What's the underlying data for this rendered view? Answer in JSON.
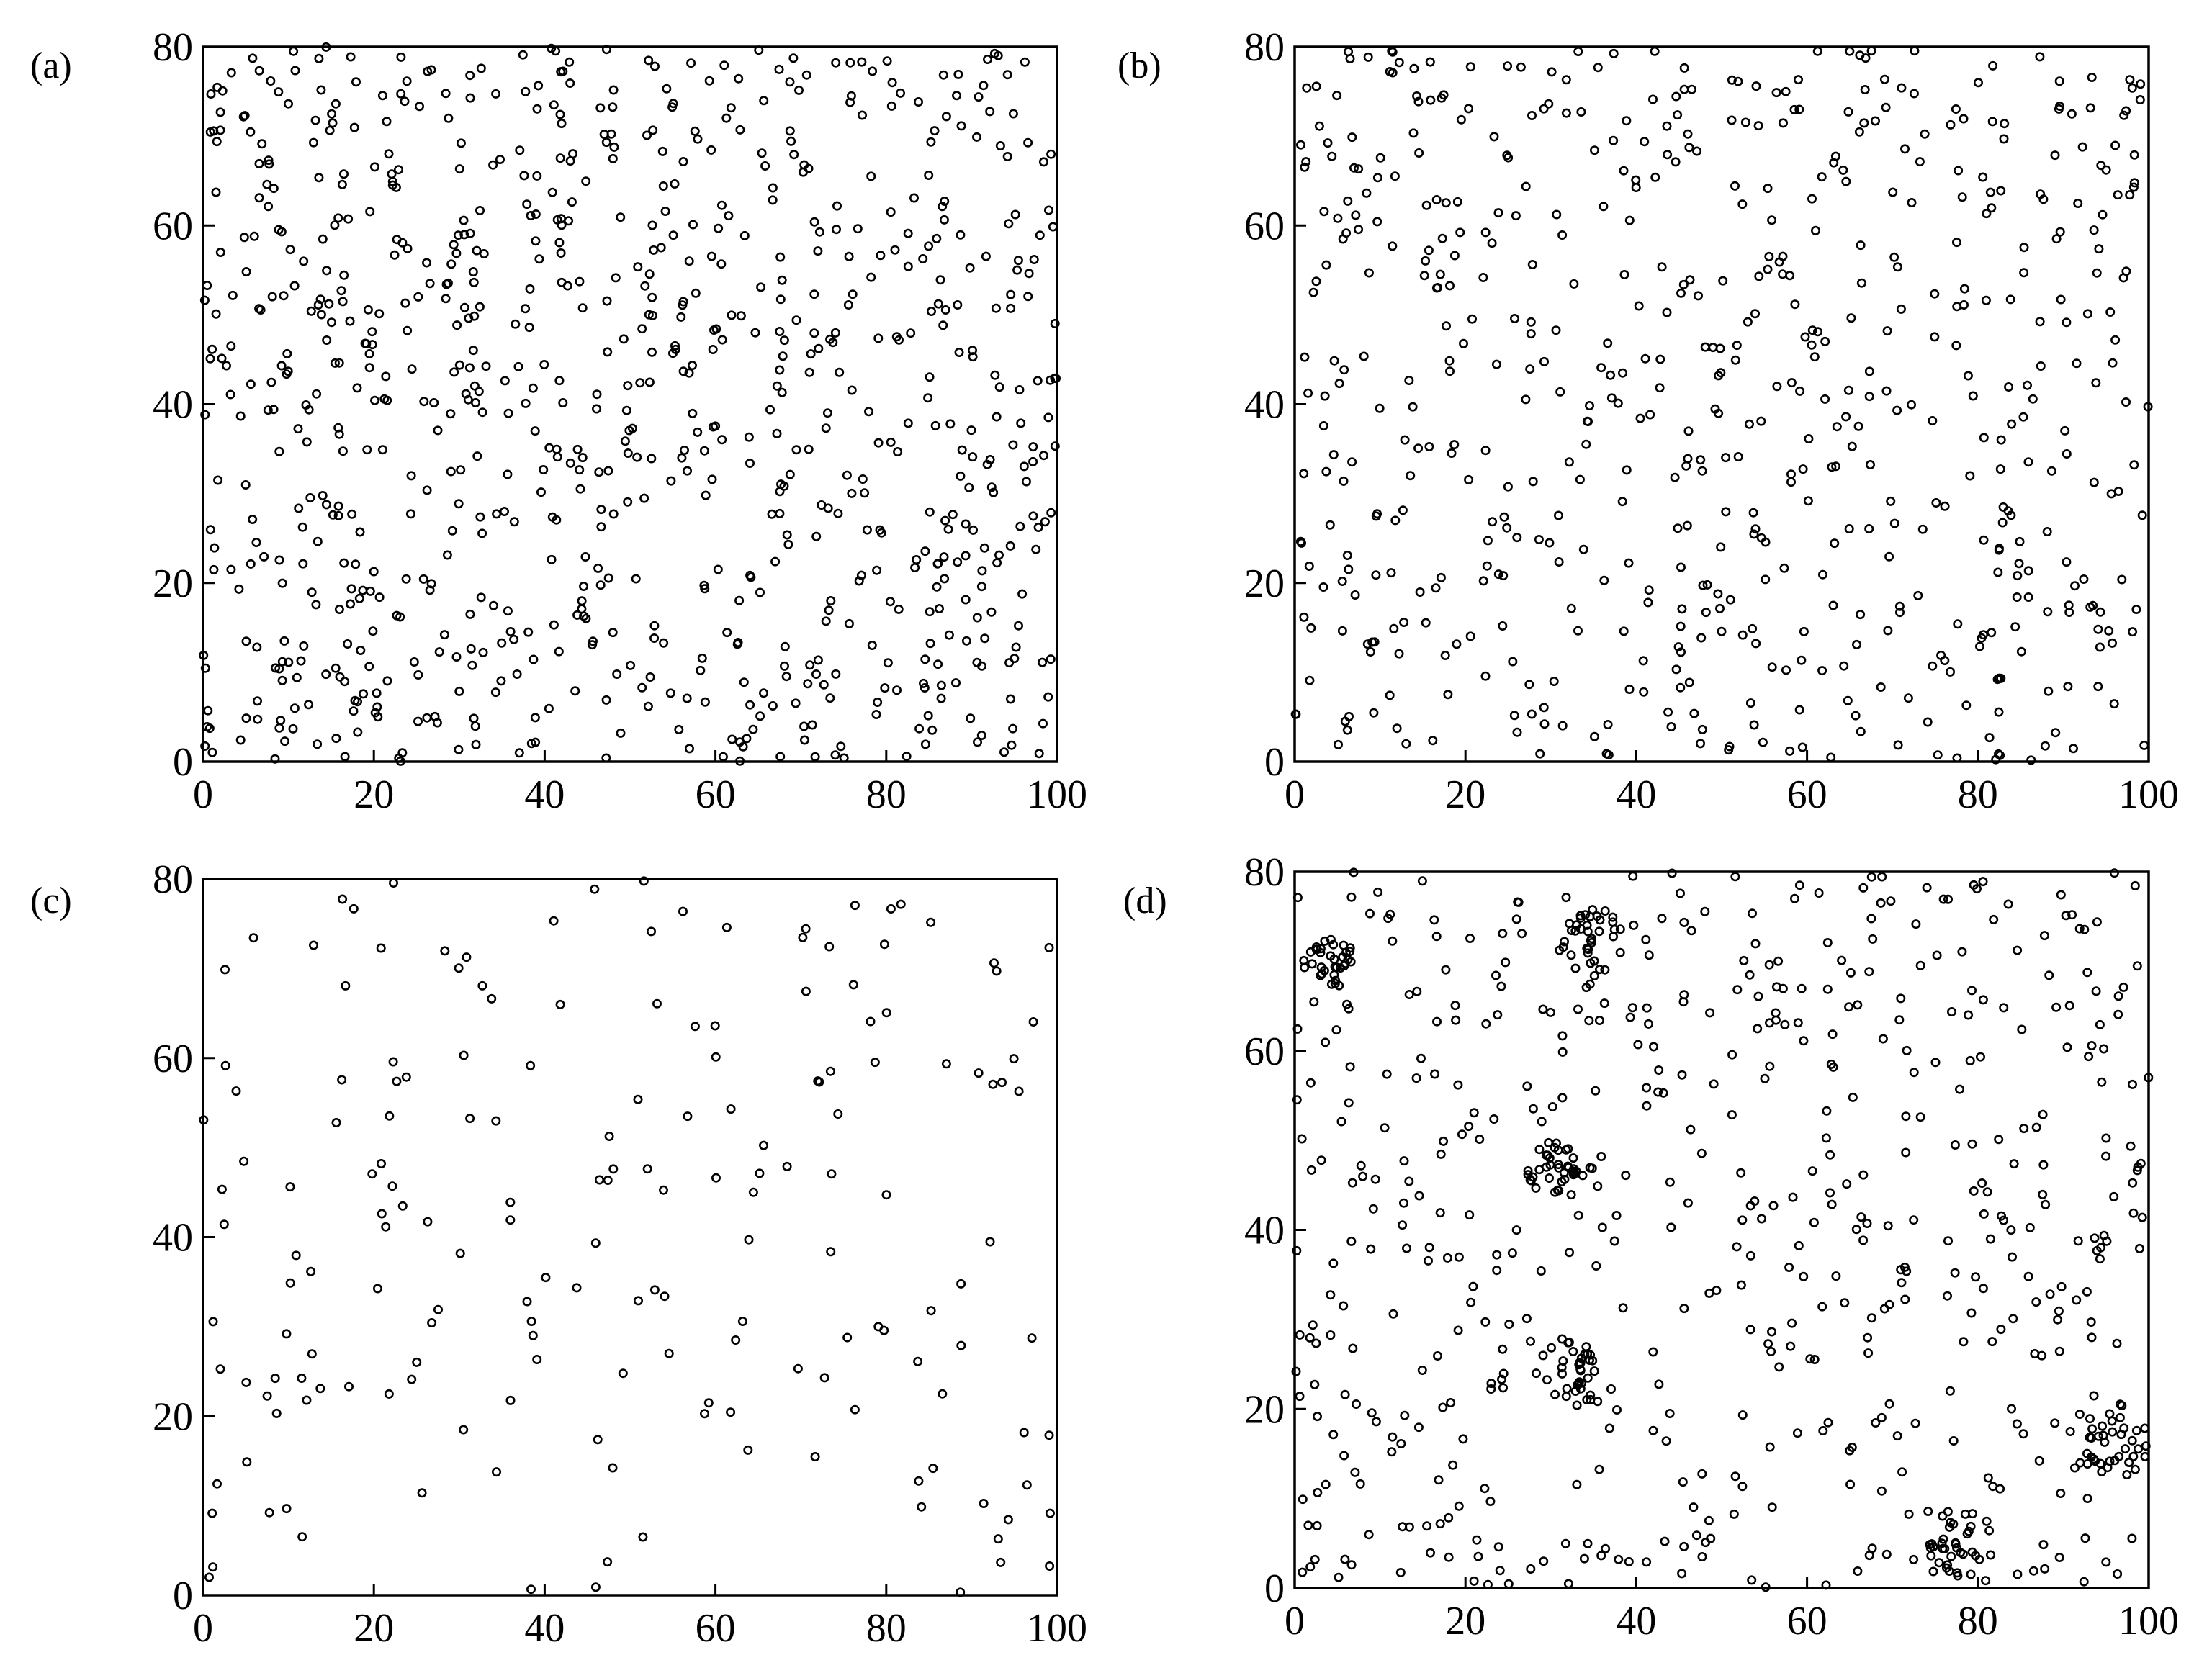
{
  "chart_data": [
    {
      "type": "scatter",
      "panel_label": "(a)",
      "xlim": [
        0,
        100
      ],
      "ylim": [
        0,
        80
      ],
      "xticks": [
        "0",
        "20",
        "40",
        "60",
        "80",
        "100"
      ],
      "yticks": [
        "0",
        "20",
        "40",
        "60",
        "80"
      ],
      "grid": false,
      "n_points": 850,
      "seed": 11,
      "points": []
    },
    {
      "type": "scatter",
      "panel_label": "(b)",
      "xlim": [
        0,
        100
      ],
      "ylim": [
        0,
        80
      ],
      "xticks": [
        "0",
        "20",
        "40",
        "60",
        "80",
        "100"
      ],
      "yticks": [
        "0",
        "20",
        "40",
        "60",
        "80"
      ],
      "grid": false,
      "n_points": 600,
      "seed": 23,
      "points": []
    },
    {
      "type": "scatter",
      "panel_label": "(c)",
      "xlim": [
        0,
        100
      ],
      "ylim": [
        0,
        80
      ],
      "xticks": [
        "0",
        "20",
        "40",
        "60",
        "80",
        "100"
      ],
      "yticks": [
        "0",
        "20",
        "40",
        "60",
        "80"
      ],
      "grid": false,
      "n_points": 180,
      "seed": 37,
      "points": []
    },
    {
      "type": "scatter",
      "panel_label": "(d)",
      "xlim": [
        0,
        100
      ],
      "ylim": [
        0,
        80
      ],
      "xticks": [
        "0",
        "20",
        "40",
        "60",
        "80",
        "100"
      ],
      "yticks": [
        "0",
        "20",
        "40",
        "60",
        "80"
      ],
      "grid": false,
      "n_points": 750,
      "seed": 53,
      "clusters": [
        [
          78,
          5,
          4
        ],
        [
          95,
          16,
          5
        ],
        [
          32,
          24,
          4
        ],
        [
          35,
          72,
          4
        ],
        [
          4,
          70,
          3
        ],
        [
          30,
          47,
          3
        ]
      ],
      "points": []
    }
  ]
}
